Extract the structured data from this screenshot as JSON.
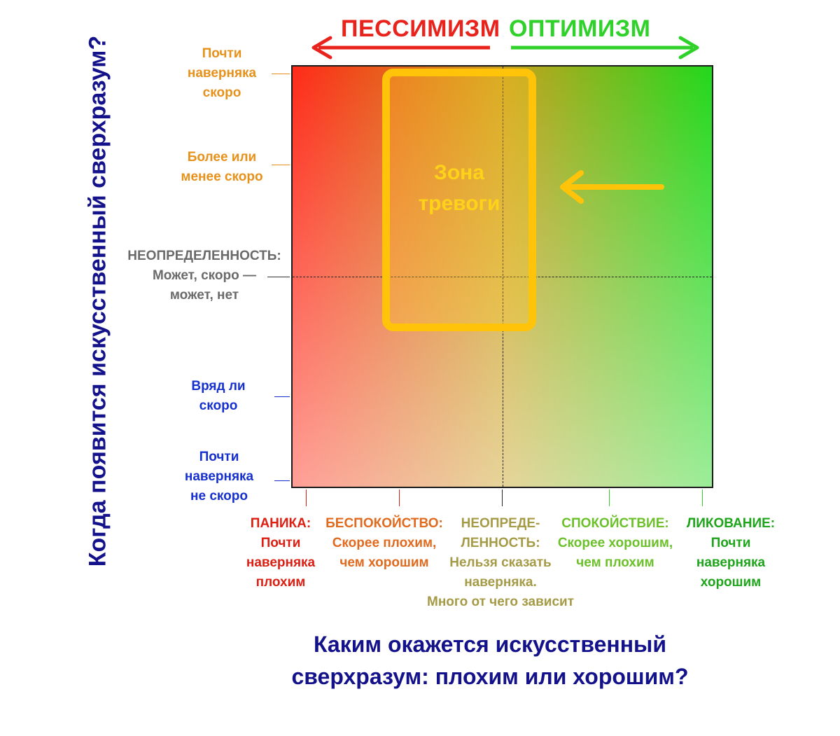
{
  "top": {
    "pessimism": "ПЕССИМИЗМ",
    "optimism": "ОПТИМИЗМ",
    "pessimism_color": "#e8231c",
    "optimism_color": "#2fd12a"
  },
  "zone": {
    "line1": "Зона",
    "line2": "тревоги",
    "color": "#ffc40a"
  },
  "y_axis": {
    "title": "Когда появится искусственный сверхразум?",
    "labels": [
      {
        "lines": [
          "Почти",
          "наверняка",
          "скоро"
        ],
        "color": "#e8911a"
      },
      {
        "lines": [
          "Более или",
          "менее скоро"
        ],
        "color": "#e8911a"
      },
      {
        "lines": [
          "НЕОПРЕДЕЛЕННОСТЬ:",
          "Может, скоро —",
          "может, нет"
        ],
        "color": "#6a6a6a"
      },
      {
        "lines": [
          "Вряд ли",
          "скоро"
        ],
        "color": "#1630d0"
      },
      {
        "lines": [
          "Почти",
          "наверняка",
          "не скоро"
        ],
        "color": "#1630d0"
      }
    ]
  },
  "x_axis": {
    "title_line1": "Каким окажется искусственный",
    "title_line2": "сверхразум: плохим или хорошим?",
    "labels": [
      {
        "lines": [
          "ПАНИКА:",
          "Почти",
          "наверняка",
          "плохим"
        ],
        "color": "#dc1f12"
      },
      {
        "lines": [
          "БЕСПОКОЙСТВО:",
          "Скорее плохим,",
          "чем хорошим"
        ],
        "color": "#e06a1e"
      },
      {
        "lines": [
          "НЕОПРЕДЕ-",
          "ЛЕННОСТЬ:",
          "Нельзя сказать",
          "наверняка.",
          "Много от чего зависит"
        ],
        "color": "#a59a45"
      },
      {
        "lines": [
          "СПОКОЙСТВИЕ:",
          "Скорее хорошим,",
          "чем плохим"
        ],
        "color": "#6cc02a"
      },
      {
        "lines": [
          "ЛИКОВАНИЕ:",
          "Почти",
          "наверняка",
          "хорошим"
        ],
        "color": "#1fa51b"
      }
    ]
  }
}
